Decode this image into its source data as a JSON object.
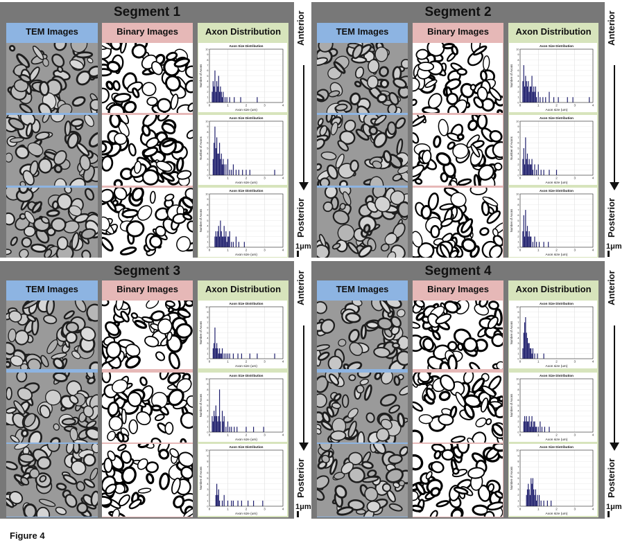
{
  "figure_label": "Figure 4",
  "column_headers": {
    "tem": "TEM Images",
    "binary": "Binary Images",
    "axon": "Axon Distribution"
  },
  "side_labels": {
    "top": "Anterior",
    "bottom": "Posterior",
    "scale": "1μm"
  },
  "colors": {
    "panel": "#787878",
    "tem_header": "#8db4e2",
    "binary_header": "#e6b8b7",
    "axon_header": "#d7e4bc",
    "bars": "#1c1c6b"
  },
  "segments": [
    {
      "title": "Segment 1"
    },
    {
      "title": "Segment 2"
    },
    {
      "title": "Segment 3"
    },
    {
      "title": "Segment 4"
    }
  ],
  "chart_data": [
    {
      "type": "bar",
      "segment": "Segment 1",
      "position": "anterior",
      "title": "Axon Size Distribution",
      "xlabel": "Axon size (um)",
      "ylabel": "Number of Axons",
      "xlim": [
        0,
        4
      ],
      "ylim": [
        0,
        10
      ],
      "xticks": [
        0,
        1,
        2,
        3,
        4
      ],
      "yticks": [
        0,
        1,
        2,
        3,
        4,
        5,
        6,
        7,
        8,
        9,
        10
      ],
      "bin_width": 0.05,
      "x": [
        0.15,
        0.2,
        0.25,
        0.3,
        0.35,
        0.4,
        0.45,
        0.5,
        0.55,
        0.6,
        0.65,
        0.7,
        0.75,
        0.85,
        0.95,
        1.1,
        1.35,
        1.7,
        2.6
      ],
      "values": [
        2,
        4,
        3,
        6,
        2,
        4,
        3,
        5,
        2,
        3,
        2,
        1,
        2,
        1,
        1,
        1,
        1,
        1,
        1
      ]
    },
    {
      "type": "bar",
      "segment": "Segment 1",
      "position": "middle",
      "title": "Axon Size Distribution",
      "xlabel": "Axon size (um)",
      "ylabel": "Number of Axons",
      "xlim": [
        0,
        4
      ],
      "ylim": [
        0,
        10
      ],
      "xticks": [
        0,
        1,
        2,
        3,
        4
      ],
      "yticks": [
        0,
        1,
        2,
        3,
        4,
        5,
        6,
        7,
        8,
        9,
        10
      ],
      "x": [
        0.2,
        0.25,
        0.3,
        0.35,
        0.4,
        0.45,
        0.5,
        0.55,
        0.6,
        0.65,
        0.7,
        0.75,
        0.8,
        0.9,
        1.0,
        1.1,
        1.2,
        1.3,
        1.45,
        1.6,
        1.8,
        2.0,
        2.2,
        3.55
      ],
      "values": [
        3,
        6,
        9,
        5,
        7,
        4,
        4,
        6,
        3,
        4,
        2,
        3,
        2,
        2,
        3,
        1,
        1,
        2,
        1,
        1,
        1,
        1,
        1,
        1
      ]
    },
    {
      "type": "bar",
      "segment": "Segment 1",
      "position": "posterior",
      "title": "Axon Size Distribution",
      "xlabel": "Axon size (um)",
      "ylabel": "Number of Axons",
      "xlim": [
        0,
        4
      ],
      "ylim": [
        0,
        10
      ],
      "xticks": [
        0,
        1,
        2,
        3,
        4
      ],
      "yticks": [
        0,
        1,
        2,
        3,
        4,
        5,
        6,
        7,
        8,
        9,
        10
      ],
      "x": [
        0.3,
        0.35,
        0.4,
        0.45,
        0.5,
        0.55,
        0.6,
        0.65,
        0.7,
        0.75,
        0.8,
        0.85,
        0.9,
        0.95,
        1.0,
        1.05,
        1.1,
        1.2,
        1.3,
        1.45,
        1.6,
        1.9
      ],
      "values": [
        2,
        3,
        2,
        3,
        4,
        2,
        5,
        3,
        2,
        2,
        4,
        2,
        3,
        1,
        2,
        2,
        3,
        1,
        1,
        2,
        1,
        1
      ]
    },
    {
      "type": "bar",
      "segment": "Segment 2",
      "position": "anterior",
      "title": "Axon Size Distribution",
      "xlabel": "Axon size (um)",
      "ylabel": "Number of Axons",
      "xlim": [
        0,
        4
      ],
      "ylim": [
        0,
        10
      ],
      "xticks": [
        0,
        1,
        2,
        3,
        4
      ],
      "yticks": [
        0,
        1,
        2,
        3,
        4,
        5,
        6,
        7,
        8,
        9,
        10
      ],
      "x": [
        0.15,
        0.2,
        0.25,
        0.3,
        0.35,
        0.4,
        0.45,
        0.5,
        0.55,
        0.6,
        0.65,
        0.7,
        0.75,
        0.8,
        0.85,
        0.9,
        1.0,
        1.1,
        1.25,
        1.4,
        1.6,
        1.85,
        2.1,
        2.6,
        2.9,
        3.8
      ],
      "values": [
        4,
        7,
        3,
        5,
        4,
        3,
        4,
        2,
        3,
        3,
        5,
        2,
        3,
        2,
        3,
        1,
        2,
        1,
        1,
        1,
        2,
        1,
        1,
        1,
        1,
        1
      ]
    },
    {
      "type": "bar",
      "segment": "Segment 2",
      "position": "middle",
      "title": "Axon Size Distribution",
      "xlabel": "Axon size (um)",
      "ylabel": "Number of Axons",
      "xlim": [
        0,
        4
      ],
      "ylim": [
        0,
        10
      ],
      "xticks": [
        0,
        1,
        2,
        3,
        4
      ],
      "yticks": [
        0,
        1,
        2,
        3,
        4,
        5,
        6,
        7,
        8,
        9,
        10
      ],
      "x": [
        0.15,
        0.2,
        0.25,
        0.3,
        0.35,
        0.4,
        0.45,
        0.5,
        0.55,
        0.6,
        0.65,
        0.7,
        0.8,
        0.9,
        1.0,
        1.15,
        1.3,
        1.6,
        2.0
      ],
      "values": [
        3,
        5,
        2,
        7,
        3,
        4,
        2,
        3,
        2,
        2,
        3,
        1,
        2,
        1,
        2,
        1,
        1,
        1,
        1
      ]
    },
    {
      "type": "bar",
      "segment": "Segment 2",
      "position": "posterior",
      "title": "Axon Size Distribution",
      "xlabel": "Axon size (um)",
      "ylabel": "Number of Axons",
      "xlim": [
        0,
        4
      ],
      "ylim": [
        0,
        10
      ],
      "xticks": [
        0,
        1,
        2,
        3,
        4
      ],
      "yticks": [
        0,
        1,
        2,
        3,
        4,
        5,
        6,
        7,
        8,
        9,
        10
      ],
      "x": [
        0.15,
        0.2,
        0.25,
        0.3,
        0.35,
        0.4,
        0.45,
        0.5,
        0.55,
        0.6,
        0.7,
        0.8,
        0.9,
        1.05,
        1.3,
        1.55
      ],
      "values": [
        3,
        6,
        2,
        7,
        3,
        4,
        2,
        3,
        2,
        2,
        1,
        2,
        1,
        1,
        1,
        1
      ]
    },
    {
      "type": "bar",
      "segment": "Segment 3",
      "position": "anterior",
      "title": "Axon Size Distribution",
      "xlabel": "Axon size (um)",
      "ylabel": "Number of Axons",
      "xlim": [
        0,
        4
      ],
      "ylim": [
        0,
        10
      ],
      "xticks": [
        0,
        1,
        2,
        3,
        4
      ],
      "yticks": [
        0,
        1,
        2,
        3,
        4,
        5,
        6,
        7,
        8,
        9,
        10
      ],
      "x": [
        0.2,
        0.25,
        0.3,
        0.35,
        0.4,
        0.45,
        0.5,
        0.55,
        0.6,
        0.65,
        0.7,
        0.8,
        0.9,
        1.0,
        1.1,
        1.3,
        1.55,
        1.75,
        2.2,
        2.6,
        3.55
      ],
      "values": [
        2,
        3,
        6,
        2,
        3,
        2,
        1,
        2,
        1,
        1,
        2,
        1,
        1,
        1,
        1,
        1,
        1,
        1,
        1,
        1,
        1
      ]
    },
    {
      "type": "bar",
      "segment": "Segment 3",
      "position": "middle",
      "title": "Axon Size Distribution",
      "xlabel": "Axon size (um)",
      "ylabel": "Number of Axons",
      "xlim": [
        0,
        4
      ],
      "ylim": [
        0,
        10
      ],
      "xticks": [
        0,
        1,
        2,
        3,
        4
      ],
      "yticks": [
        0,
        1,
        2,
        3,
        4,
        5,
        6,
        7,
        8,
        9,
        10
      ],
      "x": [
        0.15,
        0.2,
        0.25,
        0.3,
        0.35,
        0.4,
        0.45,
        0.5,
        0.55,
        0.6,
        0.7,
        0.75,
        0.8,
        0.9,
        1.0,
        1.1,
        1.2,
        1.35,
        1.5,
        2.0,
        2.4,
        2.95
      ],
      "values": [
        3,
        2,
        4,
        3,
        5,
        3,
        2,
        3,
        8,
        2,
        4,
        2,
        3,
        1,
        2,
        1,
        1,
        1,
        1,
        1,
        1,
        1
      ]
    },
    {
      "type": "bar",
      "segment": "Segment 3",
      "position": "posterior",
      "title": "Axon Size Distribution",
      "xlabel": "Axon size (um)",
      "ylabel": "Number of Axons",
      "xlim": [
        0,
        4
      ],
      "ylim": [
        0,
        10
      ],
      "xticks": [
        0,
        1,
        2,
        3,
        4
      ],
      "yticks": [
        0,
        1,
        2,
        3,
        4,
        5,
        6,
        7,
        8,
        9,
        10
      ],
      "x": [
        0.35,
        0.4,
        0.45,
        0.5,
        0.55,
        0.7,
        0.8,
        1.0,
        1.2,
        1.3,
        1.55,
        1.75,
        2.1,
        2.4,
        2.9
      ],
      "values": [
        2,
        4,
        2,
        3,
        1,
        1,
        2,
        1,
        1,
        1,
        1,
        1,
        1,
        1,
        1
      ]
    },
    {
      "type": "bar",
      "segment": "Segment 4",
      "position": "anterior",
      "title": "Axon Size Distribution",
      "xlabel": "Axon size (um)",
      "ylabel": "Number of Axons",
      "xlim": [
        0,
        4
      ],
      "ylim": [
        0,
        10
      ],
      "xticks": [
        0,
        1,
        2,
        3,
        4
      ],
      "yticks": [
        0,
        1,
        2,
        3,
        4,
        5,
        6,
        7,
        8,
        9,
        10
      ],
      "x": [
        0.15,
        0.2,
        0.25,
        0.3,
        0.35,
        0.4,
        0.45,
        0.5,
        0.55,
        0.6,
        0.65,
        0.7,
        0.8,
        0.95,
        1.3
      ],
      "values": [
        2,
        5,
        7,
        8,
        5,
        4,
        3,
        3,
        2,
        2,
        1,
        2,
        1,
        1,
        1
      ]
    },
    {
      "type": "bar",
      "segment": "Segment 4",
      "position": "middle",
      "title": "Axon Size Distribution",
      "xlabel": "Axon size (um)",
      "ylabel": "Number of Axons",
      "xlim": [
        0,
        4
      ],
      "ylim": [
        0,
        10
      ],
      "xticks": [
        0,
        1,
        2,
        3,
        4
      ],
      "yticks": [
        0,
        1,
        2,
        3,
        4,
        5,
        6,
        7,
        8,
        9,
        10
      ],
      "x": [
        0.2,
        0.25,
        0.3,
        0.35,
        0.4,
        0.45,
        0.5,
        0.55,
        0.6,
        0.65,
        0.7,
        0.75,
        0.8,
        0.85,
        0.9,
        1.0,
        1.1,
        1.2,
        1.35,
        1.6
      ],
      "values": [
        2,
        3,
        2,
        3,
        2,
        2,
        3,
        1,
        2,
        3,
        1,
        2,
        2,
        1,
        1,
        1,
        2,
        1,
        1,
        1
      ]
    },
    {
      "type": "bar",
      "segment": "Segment 4",
      "position": "posterior",
      "title": "Axon Size Distribution",
      "xlabel": "Axon size (um)",
      "ylabel": "Number of Axons",
      "xlim": [
        0,
        4
      ],
      "ylim": [
        0,
        10
      ],
      "xticks": [
        0,
        1,
        2,
        3,
        4
      ],
      "yticks": [
        0,
        1,
        2,
        3,
        4,
        5,
        6,
        7,
        8,
        9,
        10
      ],
      "x": [
        0.35,
        0.4,
        0.45,
        0.5,
        0.55,
        0.6,
        0.65,
        0.7,
        0.75,
        0.8,
        0.85,
        0.9,
        0.95,
        1.05,
        1.15,
        1.3,
        1.5,
        1.7
      ],
      "values": [
        2,
        3,
        4,
        3,
        2,
        5,
        4,
        5,
        3,
        2,
        3,
        1,
        2,
        2,
        1,
        1,
        1,
        1
      ]
    }
  ]
}
